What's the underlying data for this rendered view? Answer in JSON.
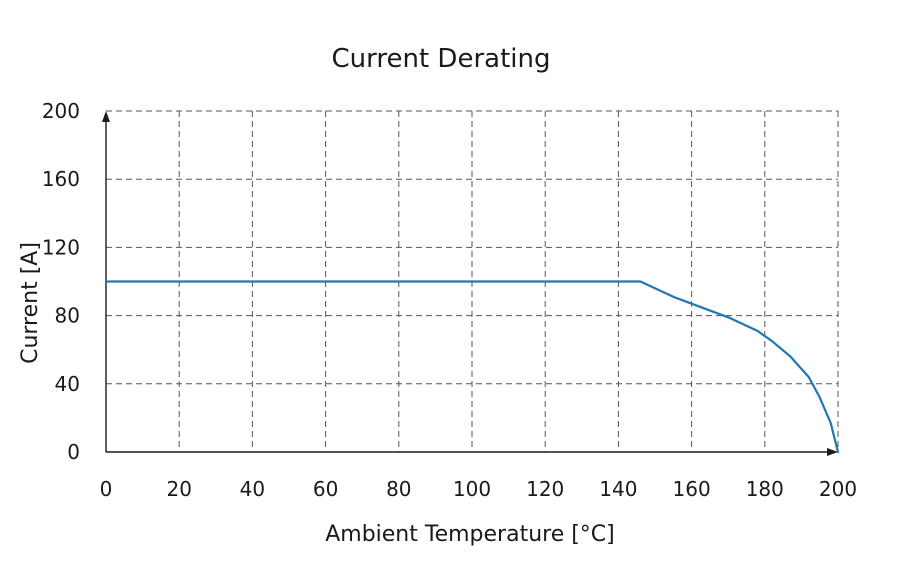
{
  "chart_data": {
    "type": "line",
    "title": "Current Derating",
    "xlabel": "Ambient Temperature [°C]",
    "ylabel": "Current [A]",
    "xlim": [
      0,
      200
    ],
    "ylim": [
      0,
      200
    ],
    "xticks": [
      0,
      20,
      40,
      60,
      80,
      100,
      120,
      140,
      160,
      180,
      200
    ],
    "yticks": [
      0,
      40,
      80,
      120,
      160,
      200
    ],
    "grid": true,
    "series_color": "#1f77b4",
    "series": [
      {
        "x": [
          0,
          146,
          155,
          160,
          170,
          178,
          182,
          187,
          192,
          195,
          198,
          200
        ],
        "y": [
          100,
          100,
          91,
          87,
          79,
          71,
          65,
          56,
          44,
          32,
          17,
          0
        ]
      }
    ]
  }
}
